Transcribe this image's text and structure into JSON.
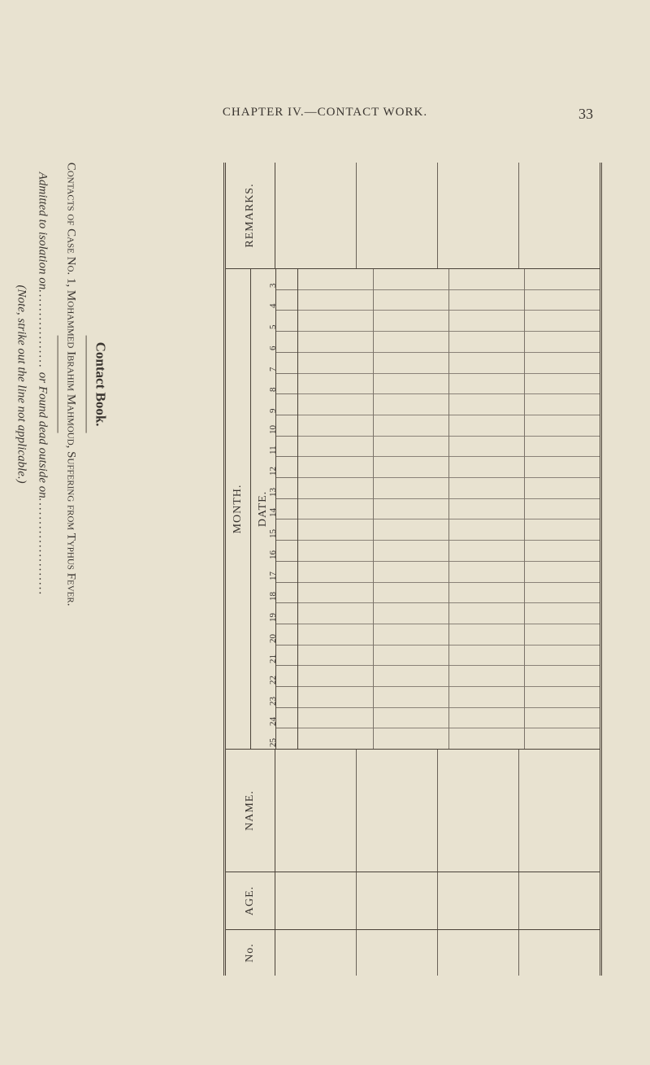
{
  "page": {
    "running_head": "CHAPTER IV.—CONTACT WORK.",
    "number": "33"
  },
  "sidebar": {
    "title": "Contact Book.",
    "case_line_prefix": "Contacts of Case No. 1, ",
    "case_name": "Mohammed Ibrahim Mahmoud",
    "case_suffix": ", Suffering from Typhus Fever.",
    "admitted_prefix": "Admitted to isolation on",
    "admitted_dots": ".................",
    "admitted_mid": " or ",
    "admitted_found": "Found dead outside on",
    "admitted_dots2": ".....................",
    "note": "(Note, strike out the line not applicable.)"
  },
  "table": {
    "remarks_label": "REMARKS.",
    "month_label": "MONTH.",
    "date_label": "DATE.",
    "name_label": "NAME.",
    "age_label": "AGE.",
    "no_label": "No.",
    "date_numbers": [
      "3",
      "4",
      "5",
      "6",
      "7",
      "8",
      "9",
      "10",
      "11",
      "12",
      "13",
      "14",
      "15",
      "16",
      "17",
      "18",
      "19",
      "20",
      "21",
      "22",
      "23",
      "24",
      "25"
    ],
    "entry_columns": 4
  },
  "colors": {
    "paper": "#e8e2d0",
    "ink": "#3a3530",
    "rule": "#4a4238",
    "light_rule": "#7a7268"
  }
}
